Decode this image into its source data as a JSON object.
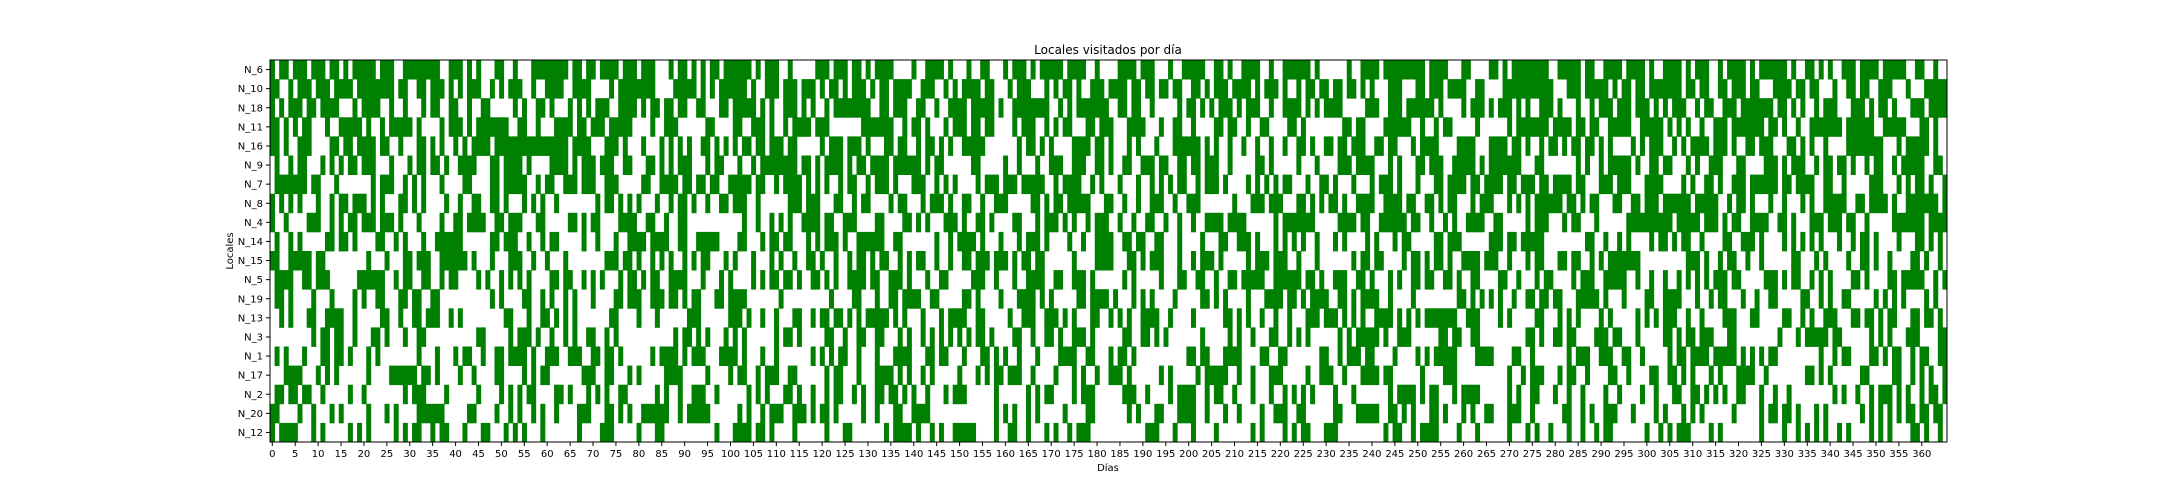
{
  "chart_data": {
    "type": "heatmap",
    "title": "Locales visitados por día",
    "xlabel": "Días",
    "ylabel": "Locales",
    "xlim": [
      0,
      365
    ],
    "x_ticks": [
      0,
      5,
      10,
      15,
      20,
      25,
      30,
      35,
      40,
      45,
      50,
      55,
      60,
      65,
      70,
      75,
      80,
      85,
      90,
      95,
      100,
      105,
      110,
      115,
      120,
      125,
      130,
      135,
      140,
      145,
      150,
      155,
      160,
      165,
      170,
      175,
      180,
      185,
      190,
      195,
      200,
      205,
      210,
      215,
      220,
      225,
      230,
      235,
      240,
      245,
      250,
      255,
      260,
      265,
      270,
      275,
      280,
      285,
      290,
      295,
      300,
      305,
      310,
      315,
      320,
      325,
      330,
      335,
      340,
      345,
      350,
      355,
      360
    ],
    "rows": [
      "N_6",
      "N_10",
      "N_18",
      "N_11",
      "N_16",
      "N_9",
      "N_7",
      "N_8",
      "N_4",
      "N_14",
      "N_15",
      "N_5",
      "N_19",
      "N_13",
      "N_3",
      "N_1",
      "N_17",
      "N_2",
      "N_20",
      "N_12"
    ],
    "visit_probability": [
      0.62,
      0.6,
      0.58,
      0.56,
      0.54,
      0.52,
      0.5,
      0.48,
      0.47,
      0.46,
      0.45,
      0.44,
      0.43,
      0.42,
      0.41,
      0.4,
      0.4,
      0.39,
      0.38,
      0.37
    ],
    "colors": {
      "visited": "#008000",
      "not_visited": "#ffffff"
    },
    "grid": false
  }
}
